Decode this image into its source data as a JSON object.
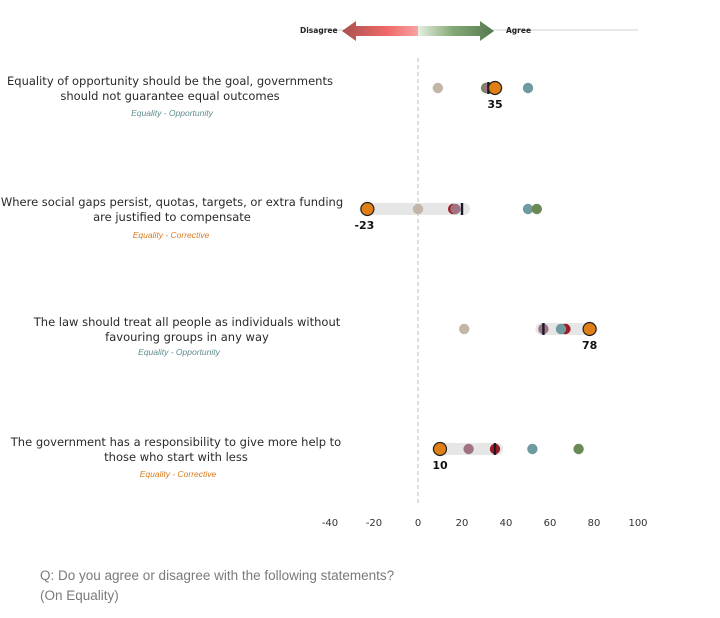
{
  "chart_data": {
    "type": "scatter",
    "subtype": "dot-plot",
    "title": "",
    "xlabel": "",
    "ylabel": "",
    "xlim": [
      -40,
      100
    ],
    "xticks": [
      -40,
      -20,
      0,
      20,
      40,
      60,
      80,
      100
    ],
    "grid": false,
    "reference_line": 0,
    "scale_legend": {
      "left_label": "Disagree",
      "right_label": "Agree",
      "left_color": "#c0504d",
      "right_color": "#5a7f52"
    },
    "colors": {
      "highlight": "#e07f16",
      "beige": "#c2b6a6",
      "mauve": "#a07383",
      "red": "#9e1b22",
      "teal": "#6f9aa0",
      "green": "#6a8a55",
      "marker": "#1a1a2a",
      "range": "#e6e6e6",
      "category_opportunity": "#5f8c8f",
      "category_corrective": "#d97a1e"
    },
    "rows": [
      {
        "statement": [
          "Equality of opportunity should be the goal, governments",
          "should not guarantee equal outcomes"
        ],
        "category": "Equality - Opportunity",
        "category_type": "opportunity",
        "highlight_value": 35,
        "highlight_label": "35",
        "marker_value": 32,
        "range": [
          32,
          35
        ],
        "points": [
          {
            "color": "beige",
            "value": 9
          },
          {
            "color": "green",
            "value": 31
          },
          {
            "color": "mauve",
            "value": 32
          },
          {
            "color": "teal",
            "value": 50
          }
        ]
      },
      {
        "statement": [
          "Where social gaps persist, quotas, targets, or extra funding",
          "are justified to compensate"
        ],
        "category": "Equality - Corrective",
        "category_type": "corrective",
        "highlight_value": -23,
        "highlight_label": "-23",
        "marker_value": 20,
        "range": [
          -23,
          20
        ],
        "points": [
          {
            "color": "beige",
            "value": 0
          },
          {
            "color": "red",
            "value": 16
          },
          {
            "color": "mauve",
            "value": 17
          },
          {
            "color": "teal",
            "value": 50
          },
          {
            "color": "green",
            "value": 54
          }
        ]
      },
      {
        "statement": [
          "The law should treat all people as individuals without",
          "favouring groups in any way"
        ],
        "category": "Equality - Opportunity",
        "category_type": "opportunity",
        "highlight_value": 78,
        "highlight_label": "78",
        "marker_value": 57,
        "range": [
          57,
          78
        ],
        "points": [
          {
            "color": "beige",
            "value": 21
          },
          {
            "color": "mauve",
            "value": 57
          },
          {
            "color": "red",
            "value": 67
          },
          {
            "color": "teal",
            "value": 65
          }
        ]
      },
      {
        "statement": [
          "The government has a responsibility to give more help to",
          "those who start with less"
        ],
        "category": "Equality - Corrective",
        "category_type": "corrective",
        "highlight_value": 10,
        "highlight_label": "10",
        "marker_value": 35,
        "range": [
          10,
          35
        ],
        "points": [
          {
            "color": "mauve",
            "value": 23
          },
          {
            "color": "red",
            "value": 35
          },
          {
            "color": "teal",
            "value": 52
          },
          {
            "color": "green",
            "value": 73
          }
        ]
      }
    ]
  },
  "question": {
    "line1": "Q: Do you agree or disagree with the following statements?",
    "line2": "(On Equality)"
  }
}
